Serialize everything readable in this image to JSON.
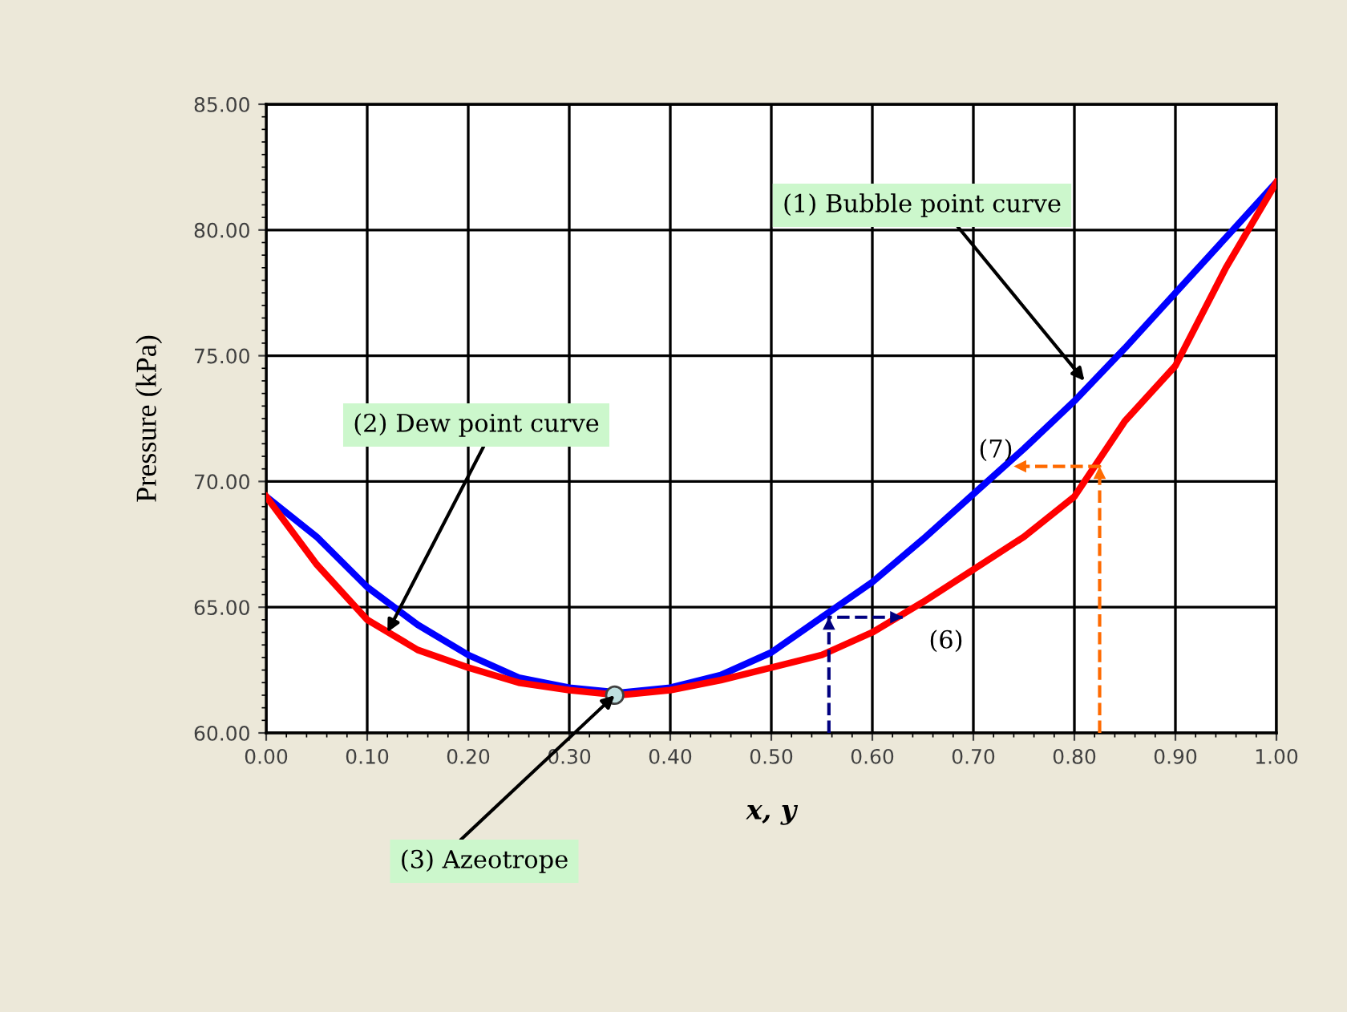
{
  "chart_data": {
    "type": "line",
    "xlabel": "x, y",
    "ylabel": "Pressure (kPa)",
    "xlim": [
      0,
      1
    ],
    "ylim": [
      60,
      85
    ],
    "xticks": [
      {
        "value": 0,
        "label": "0.00"
      },
      {
        "value": 0.1,
        "label": "0.10"
      },
      {
        "value": 0.2,
        "label": "0.20"
      },
      {
        "value": 0.3,
        "label": "0.30"
      },
      {
        "value": 0.4,
        "label": "0.40"
      },
      {
        "value": 0.5,
        "label": "0.50"
      },
      {
        "value": 0.6,
        "label": "0.60"
      },
      {
        "value": 0.7,
        "label": "0.70"
      },
      {
        "value": 0.8,
        "label": "0.80"
      },
      {
        "value": 0.9,
        "label": "0.90"
      },
      {
        "value": 1,
        "label": "1.00"
      }
    ],
    "yticks": [
      {
        "value": 60,
        "label": "60.00"
      },
      {
        "value": 65,
        "label": "65.00"
      },
      {
        "value": 70,
        "label": "70.00"
      },
      {
        "value": 75,
        "label": "75.00"
      },
      {
        "value": 80,
        "label": "80.00"
      },
      {
        "value": 85,
        "label": "85.00"
      }
    ],
    "grid": true,
    "legend": false,
    "marker": "none",
    "line_style": "solid",
    "series": [
      {
        "color": "#0000ff",
        "x": [
          0,
          0.05,
          0.1,
          0.15,
          0.2,
          0.25,
          0.3,
          0.35,
          0.4,
          0.45,
          0.5,
          0.55,
          0.6,
          0.65,
          0.7,
          0.75,
          0.8,
          0.85,
          0.9,
          0.95,
          1
        ],
        "values": [
          69.4,
          67.8,
          65.8,
          64.3,
          63.1,
          62.2,
          61.8,
          61.6,
          61.8,
          62.3,
          63.2,
          64.6,
          66.0,
          67.7,
          69.5,
          71.3,
          73.2,
          75.3,
          77.5,
          79.7,
          81.9
        ]
      },
      {
        "color": "#ff0000",
        "x": [
          0,
          0.05,
          0.1,
          0.15,
          0.2,
          0.25,
          0.3,
          0.35,
          0.4,
          0.45,
          0.5,
          0.55,
          0.6,
          0.65,
          0.7,
          0.75,
          0.8,
          0.85,
          0.9,
          0.95,
          1
        ],
        "values": [
          69.4,
          66.7,
          64.5,
          63.3,
          62.6,
          62.0,
          61.7,
          61.5,
          61.7,
          62.1,
          62.6,
          63.1,
          64.0,
          65.2,
          66.5,
          67.8,
          69.4,
          72.4,
          74.6,
          78.5,
          81.9
        ]
      },
      {
        "color": "#000080",
        "x": [
          0.557,
          0.557,
          0.63
        ],
        "values": [
          60,
          64.6,
          64.6
        ],
        "line_style": "dashed"
      },
      {
        "color": "#ff6a00",
        "x": [
          0.825,
          0.825,
          0.74
        ],
        "values": [
          60,
          70.6,
          70.6
        ],
        "line_style": "dashed"
      },
      {
        "type": "scatter",
        "marker": "circle",
        "color": "#bfe0e0",
        "x": [
          0.345
        ],
        "values": [
          61.5
        ]
      }
    ],
    "annotations": [
      {
        "text": "(1) Bubble point curve",
        "x": 0.81,
        "y": 74.0
      },
      {
        "text": "(2) Dew point curve",
        "x": 0.12,
        "y": 64.0
      },
      {
        "text": "(3) Azeotrope",
        "x": 0.345,
        "y": 61.5
      },
      "(6)",
      "(7)"
    ]
  }
}
